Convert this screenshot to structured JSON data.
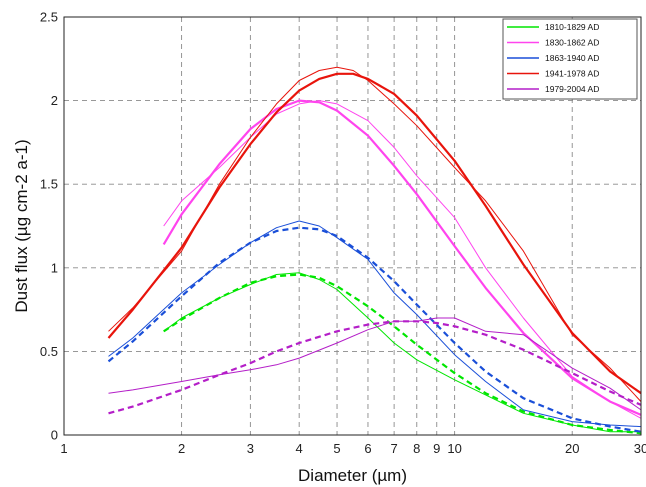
{
  "chart_data": {
    "type": "line",
    "title": "",
    "xlabel": "Diameter (µm)",
    "ylabel": "Dust flux (µg cm-2 a-1)",
    "x_scale": "log",
    "xlim": [
      1,
      30
    ],
    "ylim": [
      0,
      2.5
    ],
    "x_ticks": [
      1,
      2,
      3,
      4,
      5,
      6,
      7,
      8,
      9,
      10,
      20,
      30
    ],
    "y_ticks": [
      0,
      0.5,
      1,
      1.5,
      2,
      2.5
    ],
    "y_tick_labels": [
      "0",
      "0.5",
      "1",
      "1.5",
      "2",
      "2.5"
    ],
    "grid": true,
    "legend_position": "top-right",
    "series": [
      {
        "name": "1810-1829 AD",
        "color": "#00e600",
        "x": [
          1.8,
          2,
          2.5,
          3,
          3.5,
          4,
          4.5,
          5,
          6,
          7,
          8,
          10,
          12,
          15,
          20,
          25,
          30
        ],
        "values": [
          0.62,
          0.7,
          0.82,
          0.9,
          0.96,
          0.97,
          0.93,
          0.87,
          0.7,
          0.55,
          0.45,
          0.33,
          0.24,
          0.13,
          0.06,
          0.02,
          0.02
        ],
        "fit": {
          "style": "dashed",
          "x": [
            1.8,
            2,
            2.5,
            3,
            3.5,
            4,
            4.5,
            5,
            6,
            7,
            8,
            10,
            12,
            15,
            20,
            25,
            30
          ],
          "values": [
            0.62,
            0.69,
            0.82,
            0.91,
            0.95,
            0.96,
            0.94,
            0.89,
            0.77,
            0.65,
            0.54,
            0.37,
            0.25,
            0.14,
            0.06,
            0.03,
            0.01
          ]
        }
      },
      {
        "name": "1830-1862 AD",
        "color": "#ff44ee",
        "x": [
          1.8,
          2,
          2.5,
          3,
          3.5,
          4,
          4.5,
          5,
          6,
          7,
          8,
          10,
          12,
          15,
          20,
          25,
          30
        ],
        "values": [
          1.25,
          1.4,
          1.6,
          1.78,
          1.92,
          1.98,
          2.0,
          1.98,
          1.88,
          1.72,
          1.55,
          1.3,
          1.0,
          0.7,
          0.35,
          0.2,
          0.1
        ],
        "fit": {
          "style": "solid",
          "x": [
            1.8,
            2,
            2.5,
            3,
            3.5,
            4,
            4.5,
            5,
            6,
            7,
            8,
            10,
            12,
            15,
            20,
            25,
            30
          ],
          "values": [
            1.14,
            1.32,
            1.62,
            1.83,
            1.95,
            2.0,
            1.99,
            1.94,
            1.79,
            1.61,
            1.44,
            1.13,
            0.88,
            0.61,
            0.34,
            0.2,
            0.12
          ]
        }
      },
      {
        "name": "1863-1940 AD",
        "color": "#1a4fd8",
        "x": [
          1.3,
          1.5,
          2,
          2.5,
          3,
          3.5,
          4,
          4.5,
          5,
          6,
          7,
          8,
          10,
          12,
          15,
          20,
          25,
          30
        ],
        "values": [
          0.47,
          0.58,
          0.85,
          1.02,
          1.15,
          1.24,
          1.28,
          1.25,
          1.18,
          1.05,
          0.85,
          0.72,
          0.48,
          0.32,
          0.15,
          0.08,
          0.06,
          0.05
        ],
        "fit": {
          "style": "dashed",
          "x": [
            1.3,
            1.5,
            2,
            2.5,
            3,
            3.5,
            4,
            4.5,
            5,
            6,
            7,
            8,
            10,
            12,
            15,
            20,
            25,
            30
          ],
          "values": [
            0.44,
            0.56,
            0.83,
            1.03,
            1.15,
            1.22,
            1.24,
            1.23,
            1.19,
            1.06,
            0.92,
            0.78,
            0.55,
            0.38,
            0.22,
            0.1,
            0.05,
            0.02
          ]
        }
      },
      {
        "name": "1941-1978 AD",
        "color": "#e8140c",
        "x": [
          1.3,
          1.5,
          2,
          2.5,
          3,
          3.5,
          4,
          4.5,
          5,
          5.5,
          6,
          7,
          8,
          10,
          12,
          15,
          20,
          25,
          30
        ],
        "values": [
          0.62,
          0.76,
          1.1,
          1.5,
          1.78,
          1.98,
          2.12,
          2.18,
          2.2,
          2.18,
          2.12,
          1.98,
          1.85,
          1.6,
          1.4,
          1.1,
          0.6,
          0.4,
          0.2
        ],
        "fit": {
          "style": "solid",
          "x": [
            1.3,
            1.5,
            2,
            2.5,
            3,
            3.5,
            4,
            4.5,
            5,
            5.5,
            6,
            7,
            8,
            10,
            12,
            15,
            20,
            25,
            30
          ],
          "values": [
            0.58,
            0.75,
            1.12,
            1.48,
            1.74,
            1.93,
            2.06,
            2.13,
            2.16,
            2.16,
            2.13,
            2.04,
            1.91,
            1.64,
            1.37,
            1.02,
            0.61,
            0.38,
            0.25
          ]
        }
      },
      {
        "name": "1979-2004 AD",
        "color": "#b41ec8",
        "x": [
          1.3,
          1.5,
          2,
          2.5,
          3,
          3.5,
          4,
          5,
          6,
          7,
          8,
          9,
          10,
          12,
          15,
          20,
          25,
          30
        ],
        "values": [
          0.25,
          0.27,
          0.32,
          0.36,
          0.39,
          0.42,
          0.46,
          0.55,
          0.63,
          0.68,
          0.68,
          0.7,
          0.7,
          0.62,
          0.6,
          0.4,
          0.28,
          0.15
        ],
        "fit": {
          "style": "dashed",
          "x": [
            1.3,
            1.5,
            2,
            2.5,
            3,
            3.5,
            4,
            5,
            6,
            7,
            8,
            9,
            10,
            12,
            15,
            20,
            25,
            30
          ],
          "values": [
            0.13,
            0.17,
            0.27,
            0.36,
            0.43,
            0.5,
            0.55,
            0.62,
            0.66,
            0.68,
            0.68,
            0.67,
            0.65,
            0.6,
            0.51,
            0.37,
            0.26,
            0.18
          ]
        }
      }
    ]
  }
}
